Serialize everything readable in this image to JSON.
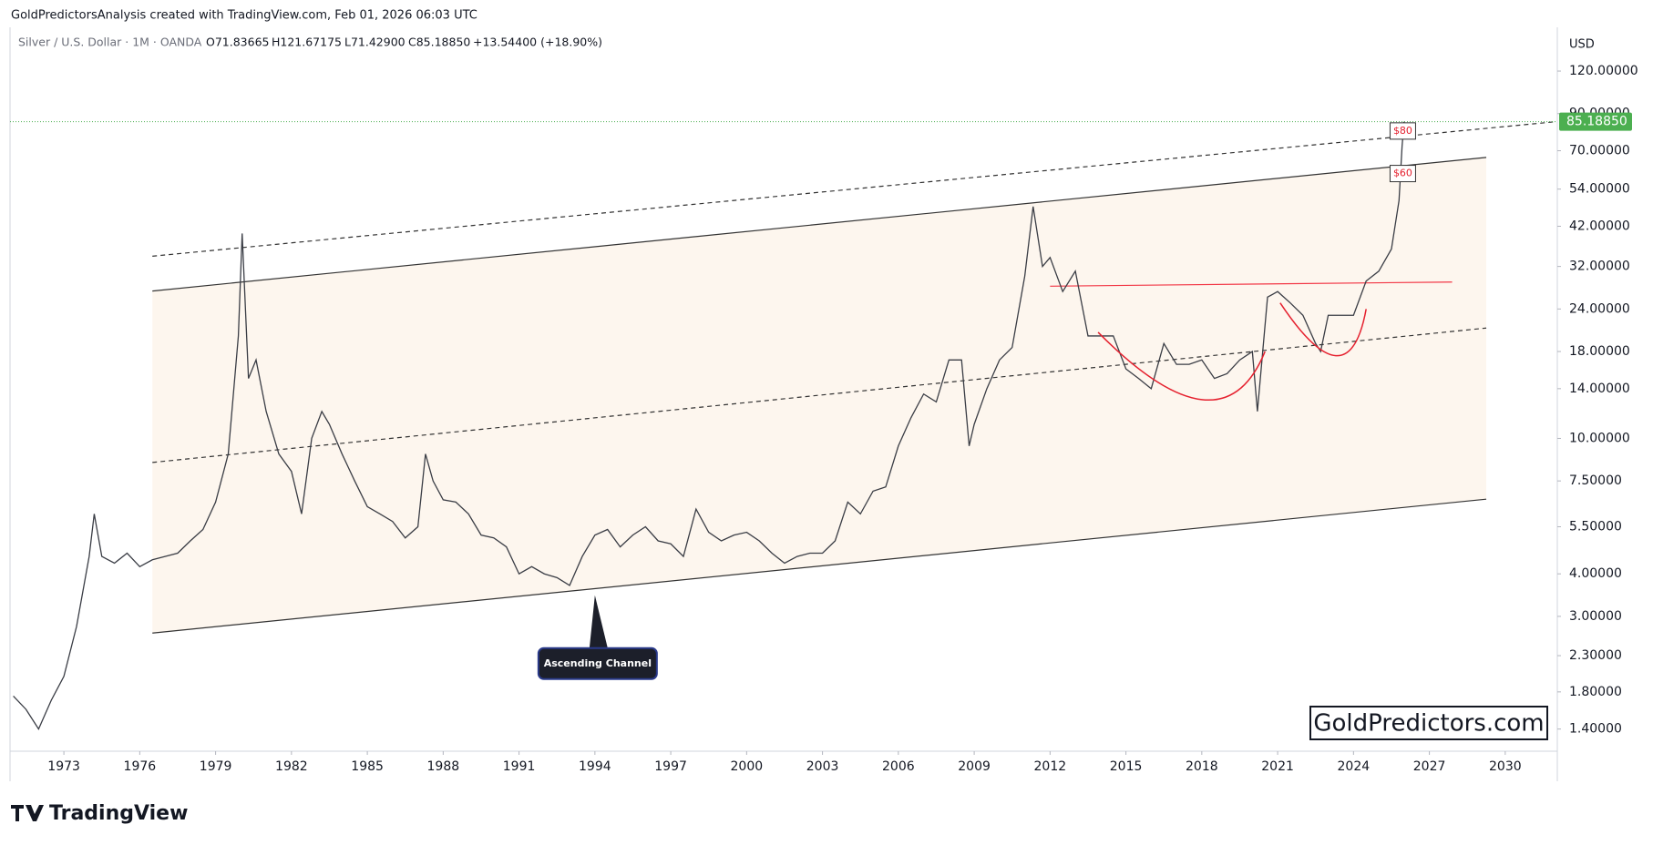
{
  "header": {
    "attribution": "GoldPredictorsAnalysis created with TradingView.com, Feb 01, 2026 06:03 UTC",
    "symbol": "Silver / U.S. Dollar · 1M · OANDA",
    "open": "O71.83665",
    "high": "H121.67175",
    "low": "L71.42900",
    "close": "C85.18850",
    "change": "+13.54400 (+18.90%)"
  },
  "chart_data": {
    "type": "line",
    "currency": "USD",
    "log_scale": true,
    "color": "#3a3d45",
    "x": [
      1971.0,
      1971.5,
      1972.0,
      1972.5,
      1973.0,
      1973.5,
      1974.0,
      1974.2,
      1974.5,
      1975.0,
      1975.5,
      1976.0,
      1976.5,
      1977.0,
      1977.5,
      1978.0,
      1978.5,
      1979.0,
      1979.5,
      1979.9,
      1980.05,
      1980.3,
      1980.6,
      1981.0,
      1981.5,
      1982.0,
      1982.4,
      1982.8,
      1983.2,
      1983.5,
      1984.0,
      1984.5,
      1985.0,
      1985.5,
      1986.0,
      1986.5,
      1987.0,
      1987.3,
      1987.6,
      1988.0,
      1988.5,
      1989.0,
      1989.5,
      1990.0,
      1990.5,
      1991.0,
      1991.5,
      1992.0,
      1992.5,
      1993.0,
      1993.5,
      1994.0,
      1994.5,
      1995.0,
      1995.5,
      1996.0,
      1996.5,
      1997.0,
      1997.5,
      1998.0,
      1998.5,
      1999.0,
      1999.5,
      2000.0,
      2000.5,
      2001.0,
      2001.5,
      2002.0,
      2002.5,
      2003.0,
      2003.5,
      2004.0,
      2004.5,
      2005.0,
      2005.5,
      2006.0,
      2006.5,
      2007.0,
      2007.5,
      2008.0,
      2008.5,
      2008.8,
      2009.0,
      2009.5,
      2010.0,
      2010.5,
      2011.0,
      2011.33,
      2011.7,
      2012.0,
      2012.5,
      2013.0,
      2013.5,
      2014.0,
      2014.5,
      2015.0,
      2015.5,
      2016.0,
      2016.5,
      2017.0,
      2017.5,
      2018.0,
      2018.5,
      2019.0,
      2019.5,
      2020.0,
      2020.2,
      2020.6,
      2021.0,
      2021.5,
      2022.0,
      2022.5,
      2022.7,
      2023.0,
      2023.5,
      2024.0,
      2024.5,
      2025.0,
      2025.5,
      2025.8,
      2025.92,
      2026.0
    ],
    "series": [
      {
        "color": "#3a3d45",
        "values": [
          1.75,
          1.6,
          1.4,
          1.7,
          2.0,
          2.8,
          4.5,
          6.0,
          4.5,
          4.3,
          4.6,
          4.2,
          4.4,
          4.5,
          4.6,
          5.0,
          5.4,
          6.5,
          9.0,
          20,
          40,
          15,
          17,
          12,
          9,
          8,
          6,
          10,
          12,
          11,
          9,
          7.5,
          6.3,
          6.0,
          5.7,
          5.1,
          5.5,
          9,
          7.5,
          6.6,
          6.5,
          6.0,
          5.2,
          5.1,
          4.8,
          4.0,
          4.2,
          4.0,
          3.9,
          3.7,
          4.5,
          5.2,
          5.4,
          4.8,
          5.2,
          5.5,
          5.0,
          4.9,
          4.5,
          6.2,
          5.3,
          5.0,
          5.2,
          5.3,
          5.0,
          4.6,
          4.3,
          4.5,
          4.6,
          4.6,
          5.0,
          6.5,
          6.0,
          7.0,
          7.2,
          9.5,
          11.5,
          13.5,
          12.8,
          17,
          17,
          9.5,
          11,
          14,
          17,
          18.5,
          30,
          48,
          32,
          34,
          27,
          31,
          20,
          20,
          20,
          16,
          15,
          14,
          19,
          16.5,
          16.5,
          17,
          15,
          15.5,
          17,
          18,
          12,
          26,
          27,
          25,
          23,
          19,
          18,
          23,
          23,
          23,
          29,
          31,
          36,
          50,
          72,
          85.1885
        ]
      }
    ],
    "xlim": [
      1970.87,
      2032.06
    ],
    "xticks": [
      1973,
      1976,
      1979,
      1982,
      1985,
      1988,
      1991,
      1994,
      1997,
      2000,
      2003,
      2006,
      2009,
      2012,
      2015,
      2018,
      2021,
      2024,
      2027,
      2030
    ],
    "ylim": [
      1.205,
      157.4
    ],
    "yticks": [
      {
        "value": 1.4,
        "label": "1.40000"
      },
      {
        "value": 1.8,
        "label": "1.80000"
      },
      {
        "value": 2.3,
        "label": "2.30000"
      },
      {
        "value": 3,
        "label": "3.00000"
      },
      {
        "value": 4,
        "label": "4.00000"
      },
      {
        "value": 5.5,
        "label": "5.50000"
      },
      {
        "value": 7.5,
        "label": "7.50000"
      },
      {
        "value": 10,
        "label": "10.00000"
      },
      {
        "value": 14,
        "label": "14.00000"
      },
      {
        "value": 18,
        "label": "18.00000"
      },
      {
        "value": 24,
        "label": "24.00000"
      },
      {
        "value": 32,
        "label": "32.00000"
      },
      {
        "value": 42,
        "label": "42.00000"
      },
      {
        "value": 54,
        "label": "54.00000"
      },
      {
        "value": 70,
        "label": "70.00000"
      },
      {
        "value": 90,
        "label": "90.00000"
      },
      {
        "value": 120,
        "label": "120.00000"
      }
    ],
    "last_price": {
      "value": 85.1885,
      "label": "85.18850",
      "color": "#4caf50"
    },
    "channel_fill": "#fdf6ee",
    "trendlines": [
      {
        "style": "solid",
        "color": "#333333",
        "x": [
          1976.5,
          2029.25
        ],
        "values": [
          27.1,
          66.9
        ]
      },
      {
        "style": "solid",
        "color": "#333333",
        "x": [
          1976.5,
          2029.25
        ],
        "values": [
          2.68,
          6.63
        ]
      },
      {
        "style": "dashed",
        "color": "#333333",
        "x": [
          1976.5,
          2029.25
        ],
        "values": [
          8.5,
          21.1
        ]
      },
      {
        "style": "dashed",
        "color": "#333333",
        "x": [
          1976.5,
          2032.0
        ],
        "values": [
          34.3,
          85.2
        ]
      },
      {
        "style": "solid",
        "color": "#f23645",
        "x": [
          2012.0,
          2027.9
        ],
        "values": [
          28.0,
          28.8
        ]
      }
    ],
    "cups": [
      {
        "color": "#e5202e",
        "x": [
          2013.9,
          2018.0,
          2020.5
        ],
        "values": [
          20.5,
          13.0,
          18.0
        ]
      },
      {
        "color": "#e5202e",
        "x": [
          2021.1,
          2023.3,
          2024.5
        ],
        "values": [
          25.0,
          17.5,
          24.0
        ]
      }
    ],
    "annotations": [
      {
        "text": "$80",
        "x": 2025.95,
        "value": 80
      },
      {
        "text": "$60",
        "x": 2025.95,
        "value": 60
      }
    ],
    "callout": {
      "text": "Ascending Channel",
      "x": 1994.0,
      "value": 3.46
    }
  },
  "watermark": "GoldPredictors.com",
  "footer": {
    "logo": "TradingView"
  }
}
